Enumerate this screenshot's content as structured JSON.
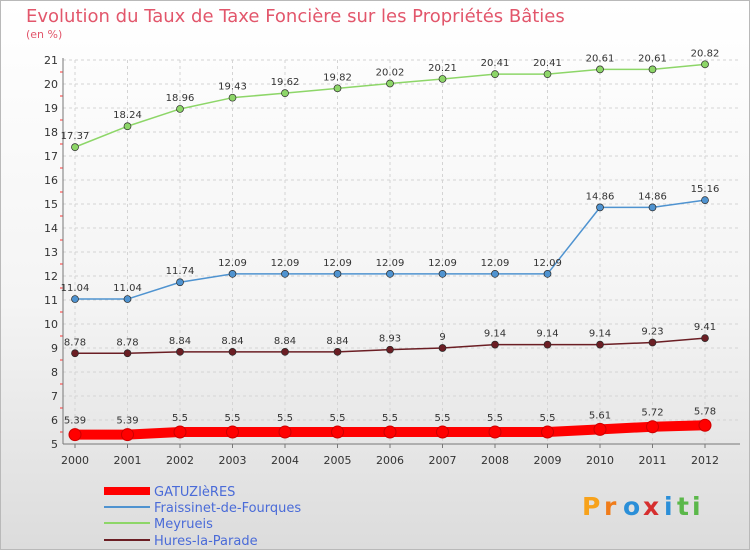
{
  "chart_data": {
    "type": "line",
    "title": "Evolution du Taux de Taxe Foncière sur les Propriétés Bâties",
    "subtitle": "(en %)",
    "x": [
      "2000",
      "2001",
      "2002",
      "2003",
      "2004",
      "2005",
      "2006",
      "2007",
      "2008",
      "2009",
      "2010",
      "2011",
      "2012"
    ],
    "ylim": [
      5,
      21
    ],
    "yticks": [
      "5",
      "6",
      "7",
      "8",
      "9",
      "10",
      "11",
      "12",
      "13",
      "14",
      "15",
      "16",
      "17",
      "18",
      "19",
      "20",
      "21"
    ],
    "grid": true,
    "legend_position": "bottom-left",
    "series": [
      {
        "name": "GATUZIèRES",
        "color": "#ff0000",
        "values": [
          5.39,
          5.39,
          5.5,
          5.5,
          5.5,
          5.5,
          5.5,
          5.5,
          5.5,
          5.5,
          5.61,
          5.72,
          5.78
        ],
        "labels": [
          "5.39",
          "5.39",
          "5.5",
          "5.5",
          "5.5",
          "5.5",
          "5.5",
          "5.5",
          "5.5",
          "5.5",
          "5.61",
          "5.72",
          "5.78"
        ]
      },
      {
        "name": "Fraissinet-de-Fourques",
        "color": "#4f93d0",
        "values": [
          11.04,
          11.04,
          11.74,
          12.09,
          12.09,
          12.09,
          12.09,
          12.09,
          12.09,
          12.09,
          14.86,
          14.86,
          15.16
        ],
        "labels": [
          "11.04",
          "11.04",
          "11.74",
          "12.09",
          "12.09",
          "12.09",
          "12.09",
          "12.09",
          "12.09",
          "12.09",
          "14.86",
          "14.86",
          "15.16"
        ]
      },
      {
        "name": "Meyrueis",
        "color": "#8dd668",
        "values": [
          17.37,
          18.24,
          18.96,
          19.43,
          19.62,
          19.82,
          20.02,
          20.21,
          20.41,
          20.41,
          20.61,
          20.61,
          20.82
        ],
        "labels": [
          "17.37",
          "18.24",
          "18.96",
          "19.43",
          "19.62",
          "19.82",
          "20.02",
          "20.21",
          "20.41",
          "20.41",
          "20.61",
          "20.61",
          "20.82"
        ]
      },
      {
        "name": "Hures-la-Parade",
        "color": "#6b1e24",
        "values": [
          8.78,
          8.78,
          8.84,
          8.84,
          8.84,
          8.84,
          8.93,
          9.0,
          9.14,
          9.14,
          9.14,
          9.23,
          9.41
        ],
        "labels": [
          "8.78",
          "8.78",
          "8.84",
          "8.84",
          "8.84",
          "8.84",
          "8.93",
          "9",
          "9.14",
          "9.14",
          "9.14",
          "9.23",
          "9.41"
        ]
      }
    ]
  },
  "logo": {
    "text": "Proxiti"
  }
}
